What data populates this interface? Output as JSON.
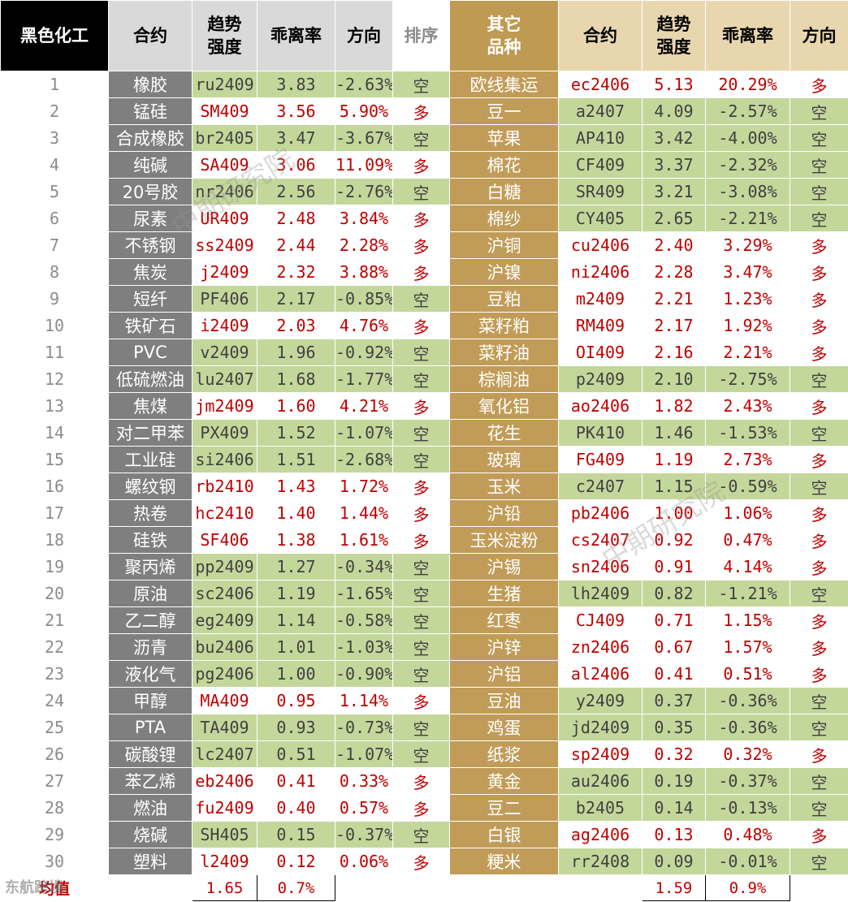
{
  "headers": [
    "黑色化工",
    "合约",
    "趋势\n强度",
    "乖离率",
    "方向",
    "排序",
    "其它\n品种",
    "合约",
    "趋势\n强度",
    "乖离率",
    "方向"
  ],
  "direction_styles": {
    "多": {
      "color": "#c00000",
      "background": "#ffffff"
    },
    "空": {
      "color": "#404040",
      "background": "#c4d79b"
    }
  },
  "rows": [
    [
      "1",
      "橡胶",
      "ru2409",
      "3.83",
      "-2.63%",
      "空",
      "欧线集运",
      "ec2406",
      "5.13",
      "20.29%",
      "多"
    ],
    [
      "2",
      "锰硅",
      "SM409",
      "3.56",
      "5.90%",
      "多",
      "豆一",
      "a2407",
      "4.09",
      "-2.57%",
      "空"
    ],
    [
      "3",
      "合成橡胶",
      "br2405",
      "3.47",
      "-3.67%",
      "空",
      "苹果",
      "AP410",
      "3.42",
      "-4.00%",
      "空"
    ],
    [
      "4",
      "纯碱",
      "SA409",
      "3.06",
      "11.09%",
      "多",
      "棉花",
      "CF409",
      "3.37",
      "-2.32%",
      "空"
    ],
    [
      "5",
      "20号胶",
      "nr2406",
      "2.56",
      "-2.76%",
      "空",
      "白糖",
      "SR409",
      "3.21",
      "-3.08%",
      "空"
    ],
    [
      "6",
      "尿素",
      "UR409",
      "2.48",
      "3.84%",
      "多",
      "棉纱",
      "CY405",
      "2.65",
      "-2.21%",
      "空"
    ],
    [
      "7",
      "不锈钢",
      "ss2409",
      "2.44",
      "2.28%",
      "多",
      "沪铜",
      "cu2406",
      "2.40",
      "3.29%",
      "多"
    ],
    [
      "8",
      "焦炭",
      "j2409",
      "2.32",
      "3.88%",
      "多",
      "沪镍",
      "ni2406",
      "2.28",
      "3.47%",
      "多"
    ],
    [
      "9",
      "短纤",
      "PF406",
      "2.17",
      "-0.85%",
      "空",
      "豆粕",
      "m2409",
      "2.21",
      "1.23%",
      "多"
    ],
    [
      "10",
      "铁矿石",
      "i2409",
      "2.03",
      "4.76%",
      "多",
      "菜籽粕",
      "RM409",
      "2.17",
      "1.92%",
      "多"
    ],
    [
      "11",
      "PVC",
      "v2409",
      "1.96",
      "-0.92%",
      "空",
      "菜籽油",
      "OI409",
      "2.16",
      "2.21%",
      "多"
    ],
    [
      "12",
      "低硫燃油",
      "lu2407",
      "1.68",
      "-1.77%",
      "空",
      "棕榈油",
      "p2409",
      "2.10",
      "-2.75%",
      "空"
    ],
    [
      "13",
      "焦煤",
      "jm2409",
      "1.60",
      "4.21%",
      "多",
      "氧化铝",
      "ao2406",
      "1.82",
      "2.43%",
      "多"
    ],
    [
      "14",
      "对二甲苯",
      "PX409",
      "1.52",
      "-1.07%",
      "空",
      "花生",
      "PK410",
      "1.46",
      "-1.53%",
      "空"
    ],
    [
      "15",
      "工业硅",
      "si2406",
      "1.51",
      "-2.68%",
      "空",
      "玻璃",
      "FG409",
      "1.19",
      "2.73%",
      "多"
    ],
    [
      "16",
      "螺纹钢",
      "rb2410",
      "1.43",
      "1.72%",
      "多",
      "玉米",
      "c2407",
      "1.15",
      "-0.59%",
      "空"
    ],
    [
      "17",
      "热卷",
      "hc2410",
      "1.40",
      "1.44%",
      "多",
      "沪铅",
      "pb2406",
      "1.00",
      "1.06%",
      "多"
    ],
    [
      "18",
      "硅铁",
      "SF406",
      "1.38",
      "1.61%",
      "多",
      "玉米淀粉",
      "cs2407",
      "0.92",
      "0.47%",
      "多"
    ],
    [
      "19",
      "聚丙烯",
      "pp2409",
      "1.27",
      "-0.34%",
      "空",
      "沪锡",
      "sn2406",
      "0.91",
      "4.14%",
      "多"
    ],
    [
      "20",
      "原油",
      "sc2406",
      "1.19",
      "-1.65%",
      "空",
      "生猪",
      "lh2409",
      "0.82",
      "-1.21%",
      "空"
    ],
    [
      "21",
      "乙二醇",
      "eg2409",
      "1.14",
      "-0.58%",
      "空",
      "红枣",
      "CJ409",
      "0.71",
      "1.15%",
      "多"
    ],
    [
      "22",
      "沥青",
      "bu2406",
      "1.01",
      "-1.03%",
      "空",
      "沪锌",
      "zn2406",
      "0.67",
      "1.57%",
      "多"
    ],
    [
      "23",
      "液化气",
      "pg2406",
      "1.00",
      "-0.90%",
      "空",
      "沪铝",
      "al2406",
      "0.41",
      "0.51%",
      "多"
    ],
    [
      "24",
      "甲醇",
      "MA409",
      "0.95",
      "1.14%",
      "多",
      "豆油",
      "y2409",
      "0.37",
      "-0.36%",
      "空"
    ],
    [
      "25",
      "PTA",
      "TA409",
      "0.93",
      "-0.73%",
      "空",
      "鸡蛋",
      "jd2409",
      "0.35",
      "-0.36%",
      "空"
    ],
    [
      "26",
      "碳酸锂",
      "lc2407",
      "0.51",
      "-1.07%",
      "空",
      "纸浆",
      "sp2409",
      "0.32",
      "0.32%",
      "多"
    ],
    [
      "27",
      "苯乙烯",
      "eb2406",
      "0.41",
      "0.33%",
      "多",
      "黄金",
      "au2406",
      "0.19",
      "-0.37%",
      "空"
    ],
    [
      "28",
      "燃油",
      "fu2409",
      "0.40",
      "0.57%",
      "多",
      "豆二",
      "b2405",
      "0.14",
      "-0.13%",
      "空"
    ],
    [
      "29",
      "烧碱",
      "SH405",
      "0.15",
      "-0.37%",
      "空",
      "白银",
      "ag2406",
      "0.13",
      "0.48%",
      "多"
    ],
    [
      "30",
      "塑料",
      "l2409",
      "0.12",
      "0.06%",
      "多",
      "粳米",
      "rr2408",
      "0.09",
      "-0.01%",
      "空"
    ]
  ],
  "footer": {
    "label": "均值",
    "left_strength": "1.65",
    "left_deviation": "0.7%",
    "right_strength": "1.59",
    "right_deviation": "0.9%"
  },
  "watermarks": [
    "中期研究院",
    "中期研究院"
  ],
  "logo_text": "东航跨境"
}
